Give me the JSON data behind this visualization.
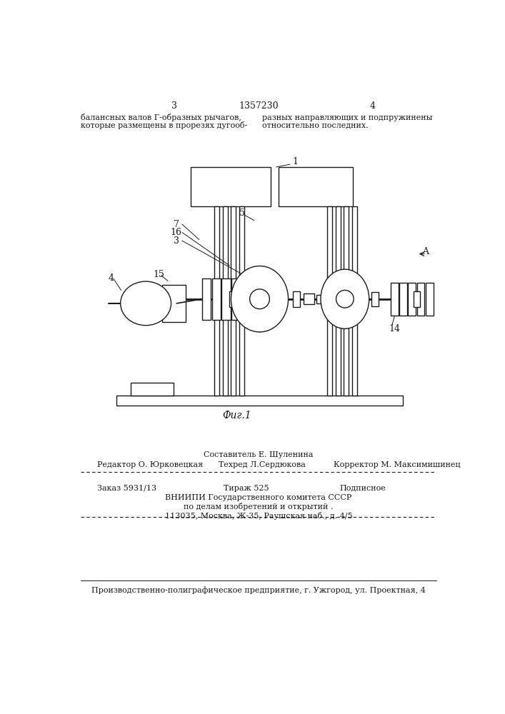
{
  "bg_color": "#ffffff",
  "line_color": "#1a1a1a",
  "page_number_left": "3",
  "page_number_center": "1357230",
  "page_number_right": "4",
  "text_top_left": "балансных валов Г-образных рычагов,\nкоторые размещены в прорезях дугооб-",
  "text_top_right": "разных направляющих и подпружинены\nотносительно последних.",
  "fig_label": "Фиг.1",
  "bottom_texts": {
    "sostavitel": "Составитель Е. Шуленина",
    "redaktor_label": "Редактор О. Юрковецкая",
    "tehred_label": "Техред Л.Сердюкова",
    "korrektor_label": "Корректор М. Максимишинец",
    "zakaz": "Заказ 5931/13",
    "tirazh": "Тираж 525",
    "podpisnoe": "Подписное",
    "vniiipi": "ВНИИПИ Государственного комитета СССР",
    "po_delam": "по делам изобретений и открытий .",
    "address": "113035, Москва, Ж-35, Раушская наб., д. 4/5",
    "predpriyatie": "Производственно-полиграфическое предприятие, г. Ужгород, ул. Проектная, 4"
  }
}
